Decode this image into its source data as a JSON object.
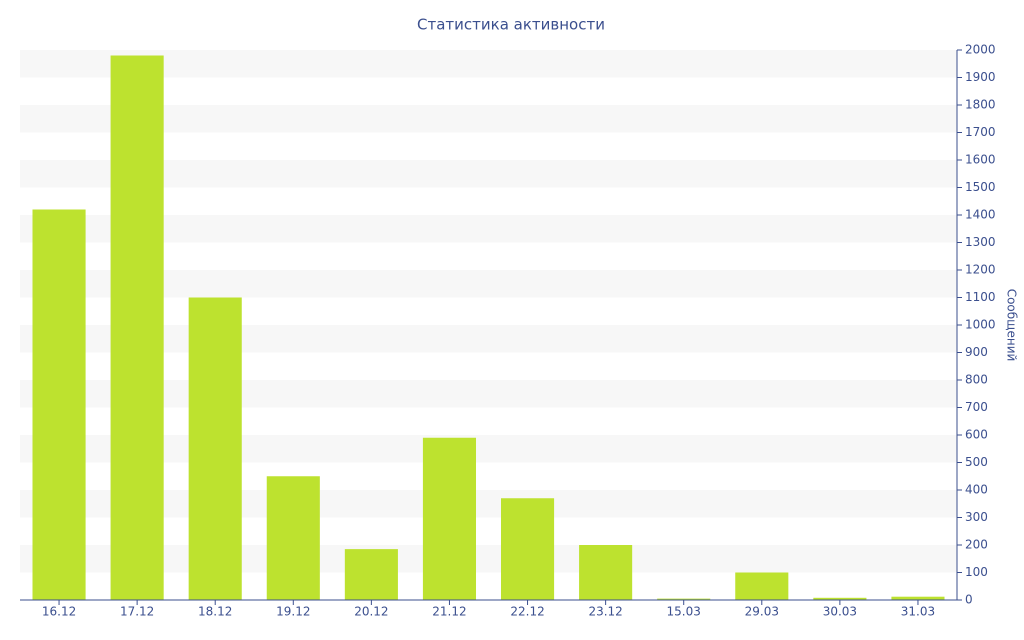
{
  "chart_data": {
    "type": "bar",
    "title": "Статистика активности",
    "y_label": "Сообщений",
    "categories": [
      "16.12",
      "17.12",
      "18.12",
      "19.12",
      "20.12",
      "21.12",
      "22.12",
      "23.12",
      "15.03",
      "29.03",
      "30.03",
      "31.03"
    ],
    "values": [
      1420,
      1980,
      1100,
      450,
      185,
      590,
      370,
      200,
      5,
      100,
      8,
      12
    ],
    "color": "#bde22f",
    "ylim": [
      0,
      2000
    ],
    "yticks": [
      0,
      100,
      200,
      300,
      400,
      500,
      600,
      700,
      800,
      900,
      1000,
      1100,
      1200,
      1300,
      1400,
      1500,
      1600,
      1700,
      1800,
      1900,
      2000
    ],
    "grid": true,
    "y_axis_side": "right"
  }
}
